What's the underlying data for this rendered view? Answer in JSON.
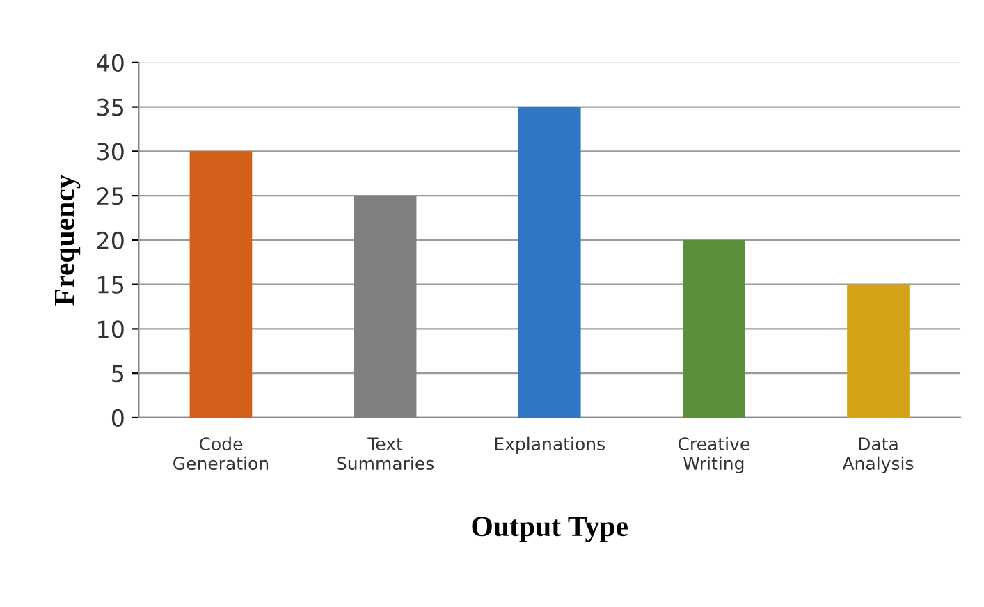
{
  "chart_data": {
    "type": "bar",
    "xlabel": "Output Type",
    "ylabel": "Frequency",
    "categories": [
      "Code\nGeneration",
      "Text\nSummaries",
      "Explanations",
      "Creative\nWriting",
      "Data\nAnalysis"
    ],
    "values": [
      30,
      25,
      35,
      20,
      15
    ],
    "colors": [
      "#d2601a",
      "#808080",
      "#2f77c3",
      "#5a8f3c",
      "#d6a317"
    ],
    "ylim": [
      0,
      40
    ],
    "yticks": [
      0,
      5,
      10,
      15,
      20,
      25,
      30,
      35,
      40
    ],
    "grid": "y"
  }
}
